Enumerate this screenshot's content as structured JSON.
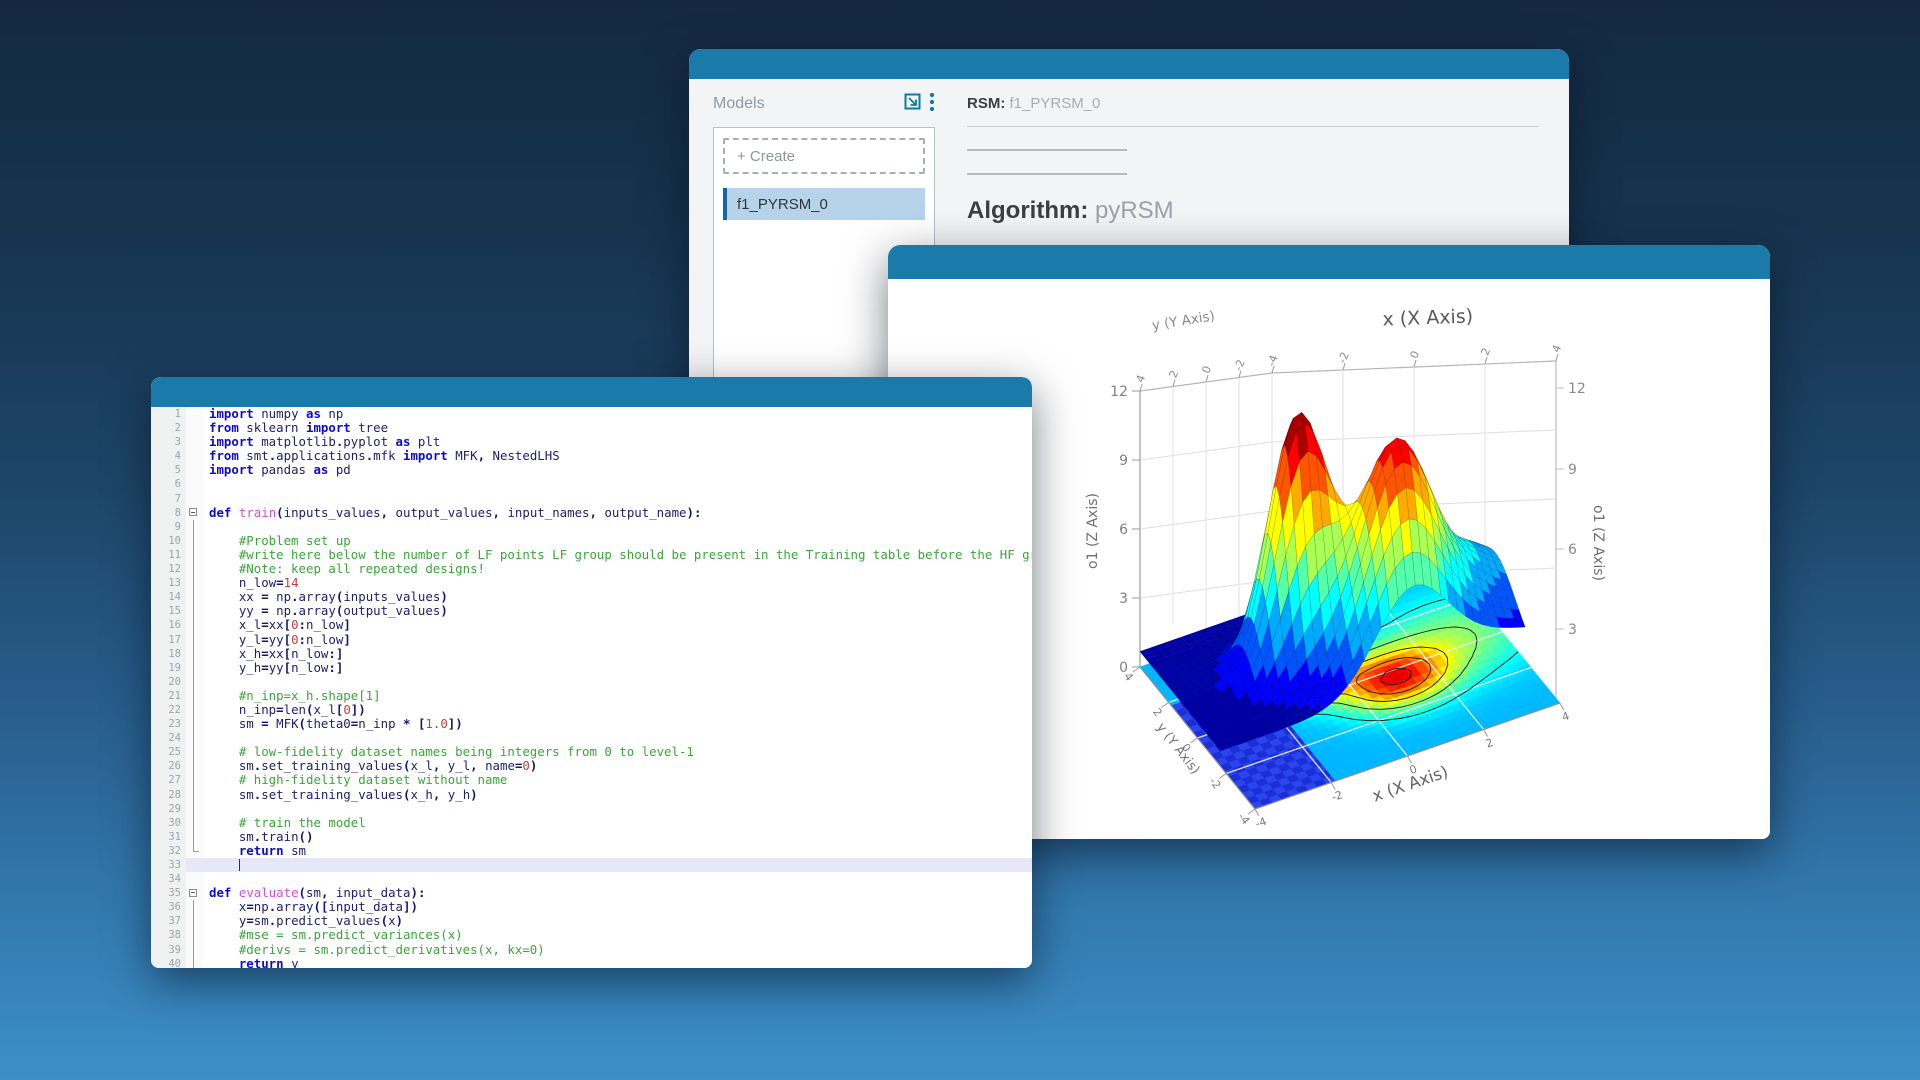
{
  "colors": {
    "titlebar": "#1a7aa9",
    "icon_teal": "#0b7c9e",
    "selected_item_bg": "#b7d3ea",
    "selected_item_accent": "#1566a4"
  },
  "windows": {
    "model_manager": {
      "panel_title": "Models",
      "icons": [
        "popout-icon",
        "kebab-menu-icon"
      ],
      "create_button": "+ Create",
      "selected_model": "f1_PYRSM_0",
      "rsm_label": "RSM:",
      "rsm_value": "f1_PYRSM_0",
      "algorithm_label": "Algorithm:",
      "algorithm_value": "pyRSM"
    },
    "code_editor": {
      "language": "python",
      "cursor_line": 33,
      "fold_starts": [
        8,
        35
      ],
      "fold_end": 32,
      "fold_guides": [
        [
          9,
          31
        ],
        [
          36,
          40
        ]
      ],
      "lines": [
        "import numpy as np",
        "from sklearn import tree",
        "import matplotlib.pyplot as plt",
        "from smt.applications.mfk import MFK, NestedLHS",
        "import pandas as pd",
        "",
        "",
        "def train(inputs_values, output_values, input_names, output_name):",
        "",
        "    #Problem set up",
        "    #write here below the number of LF points LF group should be present in the Training table before the HF group.",
        "    #Note: keep all repeated designs!",
        "    n_low=14",
        "    xx = np.array(inputs_values)",
        "    yy = np.array(output_values)",
        "    x_l=xx[0:n_low]",
        "    y_l=yy[0:n_low]",
        "    x_h=xx[n_low:]",
        "    y_h=yy[n_low:]",
        "",
        "    #n_inp=x_h.shape[1]",
        "    n_inp=len(x_l[0])",
        "    sm = MFK(theta0=n_inp * [1.0])",
        "",
        "    # low-fidelity dataset names being integers from 0 to level-1",
        "    sm.set_training_values(x_l, y_l, name=0)",
        "    # high-fidelity dataset without name",
        "    sm.set_training_values(x_h, y_h)",
        "",
        "    # train the model",
        "    sm.train()",
        "    return sm",
        "",
        "",
        "def evaluate(sm, input_data):",
        "    x=np.array([input_data])",
        "    y=sm.predict_values(x)",
        "    #mse = sm.predict_variances(x)",
        "    #derivs = sm.predict_derivatives(x, kx=0)",
        "    return y"
      ]
    }
  },
  "chart_data": {
    "type": "surface3d+contour",
    "xlabel": "x (X Axis)",
    "ylabel": "y (Y Axis)",
    "zlabel": "o1 (Z Axis)",
    "x_ticks": [
      -4,
      -2,
      0,
      2,
      4
    ],
    "y_ticks": [
      4,
      2,
      0,
      -2,
      -4
    ],
    "z_ticks": [
      0,
      3,
      6,
      9,
      12
    ],
    "xlim": [
      -4,
      4
    ],
    "ylim": [
      -4,
      4
    ],
    "zlim": [
      0,
      12
    ],
    "colormap": "jet",
    "description": "Two-peaked response surface (max z ~ 11.5 near x=-1,y=1; second peak z ~ 9.5 near x=1,y=-0.4) with filled contour projection on the base plane",
    "surface_model": {
      "base": 0.7,
      "y_domain": [
        -1.6,
        4
      ],
      "peaks": [
        {
          "x": -1,
          "y": 1,
          "amp": 11,
          "spread": 1.1
        },
        {
          "x": 1,
          "y": -0.4,
          "amp": 9,
          "spread": 1.8
        },
        {
          "x": 3,
          "y": 0.5,
          "amp": 3.2,
          "spread": 3.8
        }
      ]
    },
    "contour_levels": [
      2,
      4,
      6,
      8,
      10
    ],
    "floor_grid_lines": [
      -2,
      0,
      2
    ]
  }
}
